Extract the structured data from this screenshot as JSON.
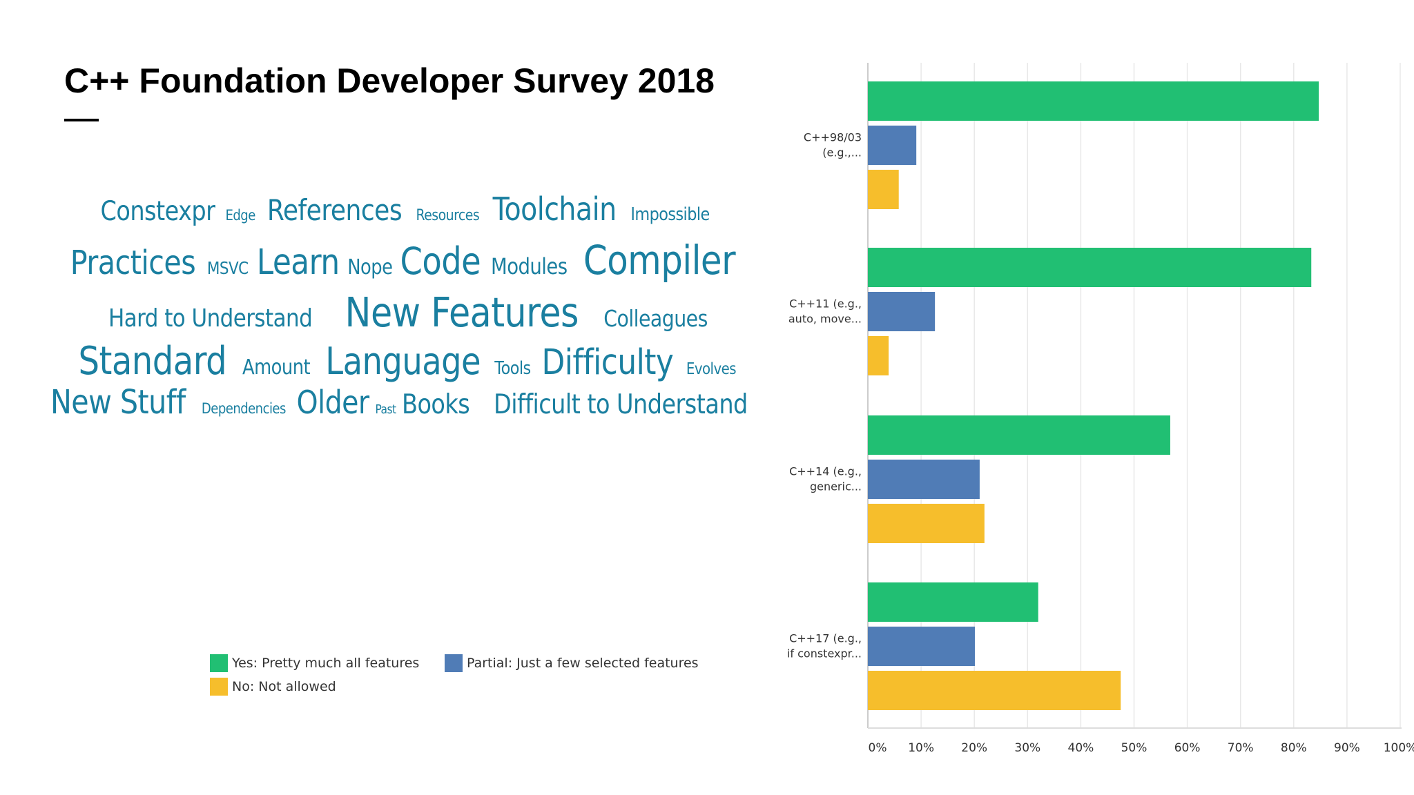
{
  "title": "C++ Foundation Developer Survey 2018",
  "word_cloud": {
    "color": "#1a7fa0",
    "lines": [
      [
        {
          "w": "Constexpr",
          "s": 39
        },
        {
          "w": "Edge",
          "s": 21
        },
        {
          "w": "References",
          "s": 42
        },
        {
          "w": "Resources",
          "s": 22
        },
        {
          "w": "Toolchain",
          "s": 46
        },
        {
          "w": "Impossible",
          "s": 26
        }
      ],
      [
        {
          "w": "Practices",
          "s": 48
        },
        {
          "w": "MSVC",
          "s": 25
        },
        {
          "w": "Learn",
          "s": 51
        },
        {
          "w": "Nope",
          "s": 30
        },
        {
          "w": "Code",
          "s": 54
        },
        {
          "w": "Modules",
          "s": 32
        },
        {
          "w": "Compiler",
          "s": 58
        }
      ],
      [
        {
          "w": "Hard to Understand",
          "s": 36
        },
        {
          "w": "New Features",
          "s": 59
        },
        {
          "w": "Colleagues",
          "s": 33
        }
      ],
      [
        {
          "w": "Standard",
          "s": 56
        },
        {
          "w": "Amount",
          "s": 30
        },
        {
          "w": "Language",
          "s": 54
        },
        {
          "w": "Tools",
          "s": 26
        },
        {
          "w": "Difficulty",
          "s": 51
        },
        {
          "w": "Evolves",
          "s": 23
        }
      ],
      [
        {
          "w": "New Stuff",
          "s": 48
        },
        {
          "w": "Dependencies",
          "s": 21
        },
        {
          "w": "Older",
          "s": 46
        },
        {
          "w": "Past",
          "s": 18
        },
        {
          "w": "Books",
          "s": 39
        },
        {
          "w": "Difficult to Understand",
          "s": 39
        }
      ]
    ]
  },
  "chart_data": {
    "type": "bar",
    "orientation": "horizontal",
    "categories": [
      [
        "C++98/03",
        "(e.g.,..."
      ],
      [
        "C++11 (e.g.,",
        "auto, move..."
      ],
      [
        "C++14 (e.g.,",
        "generic..."
      ],
      [
        "C++17 (e.g.,",
        "if constexpr..."
      ]
    ],
    "series": [
      {
        "name": "Yes: Pretty much all features",
        "color": "#21bf73",
        "values": [
          84.7,
          83.3,
          56.8,
          32.0
        ]
      },
      {
        "name": "Partial: Just a few selected features",
        "color": "#507cb6",
        "values": [
          9.1,
          12.6,
          21.0,
          20.1
        ]
      },
      {
        "name": "No: Not allowed",
        "color": "#f6be2c",
        "values": [
          5.8,
          3.9,
          21.9,
          47.5
        ]
      }
    ],
    "xlim": [
      0,
      100
    ],
    "ticks": [
      "0%",
      "10%",
      "20%",
      "30%",
      "40%",
      "50%",
      "60%",
      "70%",
      "80%",
      "90%",
      "100%"
    ],
    "grid": true,
    "legend": "bottom-left"
  }
}
